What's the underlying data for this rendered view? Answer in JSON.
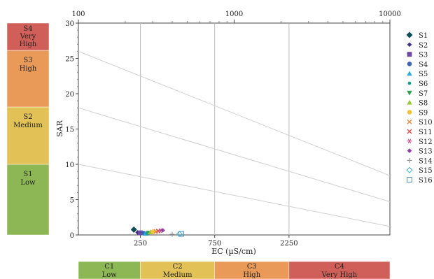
{
  "chart_data": {
    "type": "scatter",
    "title": "",
    "xlabel": "EC (µS/cm)",
    "ylabel": "SAR",
    "ylim": [
      0,
      30
    ],
    "xlim": [
      100,
      10000
    ],
    "x_scale": "log",
    "y_ticks": [
      "0",
      "5",
      "10",
      "15",
      "20",
      "25",
      "30"
    ],
    "top_ticks": [
      {
        "value": 100,
        "label": "100"
      },
      {
        "value": 1000,
        "label": "1000"
      },
      {
        "value": 10000,
        "label": "10000"
      }
    ],
    "bottom_ticks": [
      {
        "value": 250,
        "label": "250"
      },
      {
        "value": 750,
        "label": "750"
      },
      {
        "value": 2250,
        "label": "2250"
      }
    ],
    "grid": "vertical lines at class boundaries",
    "sodium_boundary_lines": [
      {
        "from": [
          100,
          10.0
        ],
        "to": [
          10000,
          1.2
        ]
      },
      {
        "from": [
          100,
          18.0
        ],
        "to": [
          10000,
          4.7
        ]
      },
      {
        "from": [
          100,
          26.0
        ],
        "to": [
          10000,
          8.4
        ]
      }
    ],
    "salinity_classes": [
      {
        "code": "C1",
        "name": "Low",
        "color": "#8db654"
      },
      {
        "code": "C2",
        "name": "Medium",
        "color": "#e2c256"
      },
      {
        "code": "C3",
        "name": "High",
        "color": "#e99a58"
      },
      {
        "code": "C4",
        "name": "Very High",
        "color": "#cf5f58"
      }
    ],
    "sodium_classes": [
      {
        "code": "S1",
        "name": "Low",
        "color": "#8db654"
      },
      {
        "code": "S2",
        "name": "Medium",
        "color": "#e2c256"
      },
      {
        "code": "S3",
        "name": "High",
        "color": "#e99a58"
      },
      {
        "code": "S4",
        "name": "Very",
        "name2": "High",
        "color": "#cf5f58"
      }
    ],
    "legend_position": "right",
    "series": [
      {
        "name": "S1",
        "marker": "diamond",
        "color": "#0e4d5a",
        "x": 227,
        "y": 0.75
      },
      {
        "name": "S2",
        "marker": "diamond-sm",
        "color": "#3b2f8a",
        "x": 240,
        "y": 0.35
      },
      {
        "name": "S3",
        "marker": "square",
        "color": "#6e4aa6",
        "x": 250,
        "y": 0.3
      },
      {
        "name": "S4",
        "marker": "circle",
        "color": "#3d63b8",
        "x": 262,
        "y": 0.25
      },
      {
        "name": "S5",
        "marker": "triangle-up",
        "color": "#2fa9d9",
        "x": 270,
        "y": 0.2
      },
      {
        "name": "S6",
        "marker": "circle-sm",
        "color": "#1e9e8c",
        "x": 276,
        "y": 0.25
      },
      {
        "name": "S7",
        "marker": "triangle-down",
        "color": "#35a15a",
        "x": 283,
        "y": 0.3
      },
      {
        "name": "S8",
        "marker": "triangle-up",
        "color": "#9cc840",
        "x": 290,
        "y": 0.4
      },
      {
        "name": "S9",
        "marker": "circle",
        "color": "#f3c237",
        "x": 302,
        "y": 0.45
      },
      {
        "name": "S10",
        "marker": "x",
        "color": "#e9893c",
        "x": 315,
        "y": 0.5
      },
      {
        "name": "S11",
        "marker": "x",
        "color": "#e0524c",
        "x": 325,
        "y": 0.55
      },
      {
        "name": "S12",
        "marker": "star",
        "color": "#d04f8f",
        "x": 335,
        "y": 0.6
      },
      {
        "name": "S13",
        "marker": "diamond-sm",
        "color": "#8e3fa2",
        "x": 348,
        "y": 0.65
      },
      {
        "name": "S14",
        "marker": "plus",
        "color": "#9a9a9a",
        "x": 400,
        "y": 0.1
      },
      {
        "name": "S15",
        "marker": "diamond-open",
        "color": "#39b5d5",
        "x": 445,
        "y": 0.15
      },
      {
        "name": "S16",
        "marker": "square-open",
        "color": "#4d8ec6",
        "x": 458,
        "y": 0.15
      }
    ]
  }
}
